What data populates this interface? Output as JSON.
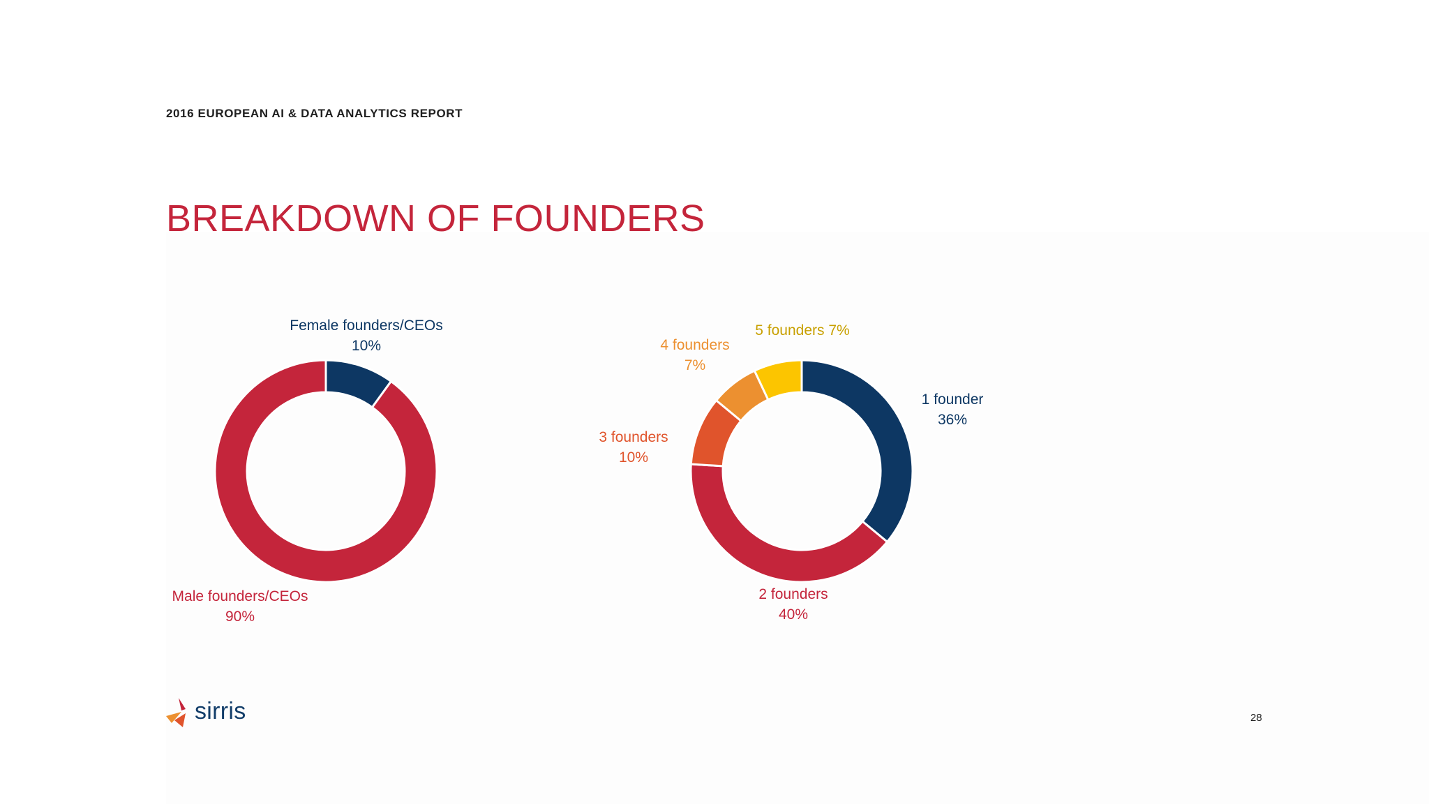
{
  "header": {
    "report_title": "2016 EUROPEAN AI & DATA ANALYTICS REPORT"
  },
  "title": "BREAKDOWN OF FOUNDERS",
  "chart_data": [
    {
      "type": "pie",
      "subtype": "donut",
      "slices": [
        {
          "label": "Female founders/CEOs",
          "value": 10,
          "display": "10%",
          "color": "#0d3763"
        },
        {
          "label": "Male founders/CEOs",
          "value": 90,
          "display": "90%",
          "color": "#c4253b"
        }
      ]
    },
    {
      "type": "pie",
      "subtype": "donut",
      "slices": [
        {
          "label": "1 founder",
          "value": 36,
          "display": "36%",
          "color": "#0d3763"
        },
        {
          "label": "2 founders",
          "value": 40,
          "display": "40%",
          "color": "#c4253b"
        },
        {
          "label": "3 founders",
          "value": 10,
          "display": "10%",
          "color": "#e0542c"
        },
        {
          "label": "4 founders",
          "value": 7,
          "display": "7%",
          "color": "#ec9030"
        },
        {
          "label": "5 founders",
          "value": 7,
          "display": "7%",
          "color": "#fcc500"
        }
      ]
    }
  ],
  "colors": {
    "title": "#c4253b",
    "five_founders_label": "#c8a000"
  },
  "footer": {
    "logo_text": "sirris",
    "page_number": "28"
  }
}
